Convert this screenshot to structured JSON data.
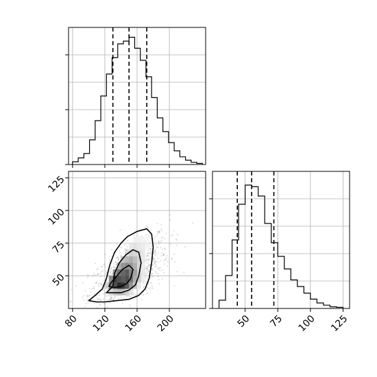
{
  "chart_data": [
    {
      "panel": "top-left",
      "type": "histogram",
      "variable_axis": "x",
      "xlim": [
        75,
        245
      ],
      "ylim": [
        0,
        0.25
      ],
      "y_tick_labels_shown": false,
      "grid": true,
      "bin_edges": [
        80,
        87,
        94,
        101,
        108,
        115,
        122,
        129,
        136,
        143,
        150,
        157,
        164,
        171,
        178,
        185,
        192,
        199,
        206,
        213,
        220,
        227,
        234,
        241
      ],
      "counts": [
        0.005,
        0.012,
        0.02,
        0.045,
        0.08,
        0.125,
        0.165,
        0.195,
        0.22,
        0.225,
        0.232,
        0.212,
        0.19,
        0.16,
        0.122,
        0.085,
        0.06,
        0.04,
        0.025,
        0.014,
        0.008,
        0.004,
        0.002
      ],
      "quantile_lines": [
        130,
        150,
        172
      ]
    },
    {
      "panel": "bottom-left",
      "type": "heatmap",
      "xlim": [
        75,
        245
      ],
      "ylim": [
        25,
        130
      ],
      "x_ticks": [
        80,
        120,
        160,
        200
      ],
      "y_ticks": [
        50,
        75,
        100,
        125
      ],
      "grid": true,
      "contours": 3,
      "scatter_alpha": "faint"
    },
    {
      "panel": "bottom-right",
      "type": "histogram",
      "variable_axis": "x",
      "xlim": [
        25,
        130
      ],
      "ylim": [
        0,
        0.25
      ],
      "x_ticks": [
        50,
        75,
        100,
        125
      ],
      "y_tick_labels_shown": false,
      "grid": true,
      "bin_edges": [
        30,
        35,
        40,
        45,
        50,
        55,
        60,
        65,
        70,
        75,
        80,
        85,
        90,
        95,
        100,
        105,
        110,
        115,
        120,
        125
      ],
      "counts": [
        0.015,
        0.06,
        0.125,
        0.19,
        0.225,
        0.222,
        0.205,
        0.155,
        0.12,
        0.095,
        0.072,
        0.052,
        0.04,
        0.028,
        0.017,
        0.01,
        0.006,
        0.003,
        0.002
      ],
      "quantile_lines": [
        44,
        55,
        72
      ]
    }
  ]
}
